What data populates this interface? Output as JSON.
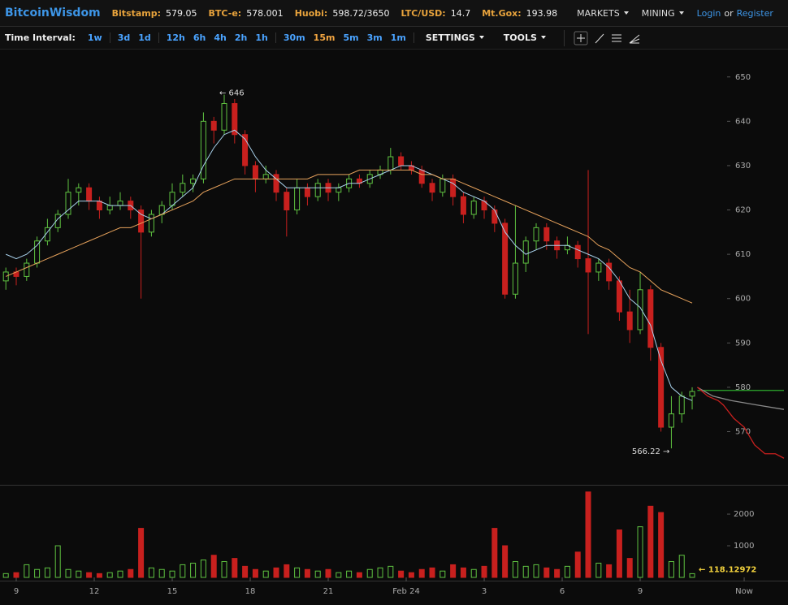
{
  "header": {
    "brand": "BitcoinWisdom",
    "tickers": [
      {
        "label": "Bitstamp:",
        "value": "579.05"
      },
      {
        "label": "BTC-e:",
        "value": "578.001"
      },
      {
        "label": "Huobi:",
        "value": "598.72/3650"
      },
      {
        "label": "LTC/USD:",
        "value": "14.7"
      },
      {
        "label": "Mt.Gox:",
        "value": "193.98"
      }
    ],
    "menu": [
      "MARKETS",
      "MINING"
    ],
    "login": "Login",
    "or": "or",
    "register": "Register"
  },
  "toolbar": {
    "label": "Time Interval:",
    "intervals": [
      [
        "1w"
      ],
      [
        "3d",
        "1d"
      ],
      [
        "12h",
        "6h",
        "4h",
        "2h",
        "1h"
      ],
      [
        "30m",
        "15m",
        "5m",
        "3m",
        "1m"
      ]
    ],
    "active": "15m",
    "settings": "SETTINGS",
    "tools": "TOOLS"
  },
  "chart_data": [
    {
      "type": "candlestick",
      "up_color": "#5fc341",
      "down_color": "#c8201e",
      "xlim": [
        -0.625,
        29.53
      ],
      "xticks": [
        {
          "value": 0,
          "label": "9"
        },
        {
          "value": 3,
          "label": "12"
        },
        {
          "value": 6,
          "label": "15"
        },
        {
          "value": 9,
          "label": "18"
        },
        {
          "value": 12,
          "label": "21"
        },
        {
          "value": 15,
          "label": "Feb 24"
        },
        {
          "value": 18,
          "label": "3"
        },
        {
          "value": 21,
          "label": "6"
        },
        {
          "value": 24,
          "label": "9"
        },
        {
          "value": 28,
          "label": "Now"
        }
      ],
      "ylim": [
        558,
        656
      ],
      "yticks": [
        570,
        580,
        590,
        600,
        610,
        620,
        630,
        640,
        650
      ],
      "x": [
        -0.4,
        0,
        0.4,
        0.8,
        1.2,
        1.6,
        2,
        2.4,
        2.8,
        3.2,
        3.6,
        4,
        4.4,
        4.8,
        5.2,
        5.6,
        6,
        6.4,
        6.8,
        7.2,
        7.6,
        8,
        8.4,
        8.8,
        9.2,
        9.6,
        10,
        10.4,
        10.8,
        11.2,
        11.6,
        12,
        12.4,
        12.8,
        13.2,
        13.6,
        14,
        14.4,
        14.8,
        15.2,
        15.6,
        16,
        16.4,
        16.8,
        17.2,
        17.6,
        18,
        18.4,
        18.8,
        19.2,
        19.6,
        20,
        20.4,
        20.8,
        21.2,
        21.6,
        22,
        22.4,
        22.8,
        23.2,
        23.6,
        24,
        24.4,
        24.8,
        25.2,
        25.6,
        26
      ],
      "open": [
        604,
        606,
        605,
        608,
        613,
        616,
        619,
        624,
        625,
        622,
        620,
        621,
        622,
        620,
        615,
        619,
        621,
        624,
        626,
        627,
        640,
        638,
        644,
        637,
        630,
        627,
        628,
        624,
        620,
        625,
        623,
        626,
        624,
        625,
        627,
        626,
        628,
        629,
        632,
        630,
        629,
        626,
        624,
        627,
        623,
        619,
        622,
        620,
        617,
        601,
        608,
        613,
        616,
        613,
        611,
        612,
        609,
        606,
        608,
        604,
        597,
        593,
        602,
        589,
        571,
        574,
        578
      ],
      "high": [
        607,
        607,
        609,
        614,
        618,
        620,
        627,
        626,
        626,
        623,
        623,
        624,
        623,
        621,
        620,
        622,
        626,
        628,
        628,
        642,
        641,
        646,
        645,
        638,
        631,
        630,
        629,
        625,
        627,
        626,
        627,
        627,
        626,
        628,
        628,
        629,
        630,
        634,
        633,
        631,
        630,
        627,
        628,
        628,
        624,
        623,
        623,
        621,
        618,
        621,
        614,
        617,
        617,
        614,
        614,
        613,
        629,
        609,
        609,
        605,
        602,
        606,
        603,
        590,
        578,
        579,
        580
      ],
      "low": [
        602,
        603,
        604,
        607,
        612,
        615,
        618,
        621,
        620,
        618,
        619,
        620,
        618,
        600,
        614,
        617,
        620,
        623,
        624,
        626,
        635,
        637,
        635,
        628,
        624,
        626,
        622,
        614,
        619,
        621,
        622,
        622,
        622,
        624,
        625,
        625,
        627,
        628,
        629,
        628,
        625,
        622,
        623,
        621,
        617,
        618,
        618,
        615,
        600,
        600,
        606,
        611,
        611,
        609,
        610,
        607,
        592,
        604,
        602,
        595,
        590,
        592,
        586,
        570,
        566.22,
        572,
        575
      ],
      "close": [
        606,
        605,
        608,
        613,
        616,
        619,
        624,
        625,
        622,
        620,
        621,
        622,
        620,
        615,
        619,
        621,
        624,
        626,
        627,
        640,
        638,
        644,
        637,
        630,
        627,
        628,
        624,
        620,
        625,
        623,
        626,
        624,
        625,
        627,
        626,
        628,
        629,
        632,
        630,
        629,
        626,
        624,
        627,
        623,
        619,
        622,
        620,
        617,
        601,
        608,
        613,
        616,
        613,
        611,
        612,
        609,
        606,
        608,
        604,
        597,
        593,
        602,
        589,
        571,
        574,
        578,
        579.05
      ],
      "lines": [
        {
          "color": "#a9d2ec",
          "values": [
            610,
            609,
            610,
            612,
            615,
            618,
            620,
            622,
            622,
            622,
            621,
            621,
            621,
            619,
            618,
            619,
            621,
            623,
            625,
            630,
            634,
            637,
            638,
            636,
            632,
            629,
            627,
            625,
            625,
            625,
            625,
            625,
            625,
            626,
            626,
            627,
            628,
            629,
            630,
            630,
            629,
            628,
            627,
            626,
            624,
            623,
            622,
            620,
            615,
            612,
            610,
            611,
            612,
            612,
            612,
            611,
            610,
            609,
            607,
            604,
            600,
            598,
            594,
            586,
            580,
            578,
            577
          ]
        },
        {
          "color": "#e8a35c",
          "values": [
            605,
            606,
            607,
            608,
            609,
            610,
            611,
            612,
            613,
            614,
            615,
            616,
            616,
            617,
            618,
            619,
            620,
            621,
            622,
            624,
            625,
            626,
            627,
            627,
            627,
            627,
            627,
            627,
            627,
            627,
            628,
            628,
            628,
            628,
            629,
            629,
            629,
            629,
            629,
            629,
            628,
            628,
            627,
            627,
            626,
            625,
            624,
            623,
            622,
            621,
            620,
            619,
            618,
            617,
            616,
            615,
            614,
            612,
            611,
            609,
            607,
            606,
            604,
            602,
            601,
            600,
            599
          ]
        }
      ],
      "overlays": [
        {
          "color": "#2fae2f",
          "x": [
            26.2,
            29.53
          ],
          "values": [
            579.3,
            579.3
          ]
        },
        {
          "color": "#8a8a8a",
          "x": [
            26.2,
            26.8,
            27.5,
            28.5,
            29.53
          ],
          "values": [
            580,
            578,
            577,
            576,
            575
          ]
        },
        {
          "color": "#c8201e",
          "x": [
            26.2,
            26.6,
            27,
            27.2,
            27.6,
            28,
            28.4,
            28.8,
            29.2,
            29.53
          ],
          "values": [
            580,
            578,
            577,
            576,
            573,
            571,
            567,
            565,
            565,
            564
          ]
        }
      ],
      "annotations": [
        "← 646",
        "566.22 →"
      ]
    },
    {
      "type": "bar",
      "up_color": "#5fc341",
      "down_color": "#c8201e",
      "xlim": [
        -0.625,
        29.53
      ],
      "ylim": [
        0,
        2900
      ],
      "yticks": [
        1000,
        2000
      ],
      "x": [
        -0.4,
        0,
        0.4,
        0.8,
        1.2,
        1.6,
        2,
        2.4,
        2.8,
        3.2,
        3.6,
        4,
        4.4,
        4.8,
        5.2,
        5.6,
        6,
        6.4,
        6.8,
        7.2,
        7.6,
        8,
        8.4,
        8.8,
        9.2,
        9.6,
        10,
        10.4,
        10.8,
        11.2,
        11.6,
        12,
        12.4,
        12.8,
        13.2,
        13.6,
        14,
        14.4,
        14.8,
        15.2,
        15.6,
        16,
        16.4,
        16.8,
        17.2,
        17.6,
        18,
        18.4,
        18.8,
        19.2,
        19.6,
        20,
        20.4,
        20.8,
        21.2,
        21.6,
        22,
        22.4,
        22.8,
        23.2,
        23.6,
        24,
        24.4,
        24.8,
        25.2,
        25.6,
        26
      ],
      "values": [
        120,
        150,
        400,
        250,
        300,
        1000,
        250,
        200,
        150,
        120,
        150,
        200,
        250,
        1550,
        300,
        250,
        200,
        400,
        450,
        550,
        700,
        500,
        600,
        350,
        250,
        200,
        300,
        400,
        300,
        250,
        200,
        250,
        150,
        200,
        150,
        250,
        300,
        350,
        200,
        150,
        250,
        300,
        200,
        400,
        300,
        250,
        350,
        1550,
        1000,
        500,
        350,
        400,
        300,
        250,
        350,
        800,
        2700,
        450,
        400,
        1500,
        600,
        1600,
        2250,
        2050,
        500,
        700,
        118.12972
      ],
      "last_label": "← 118.12972"
    }
  ]
}
